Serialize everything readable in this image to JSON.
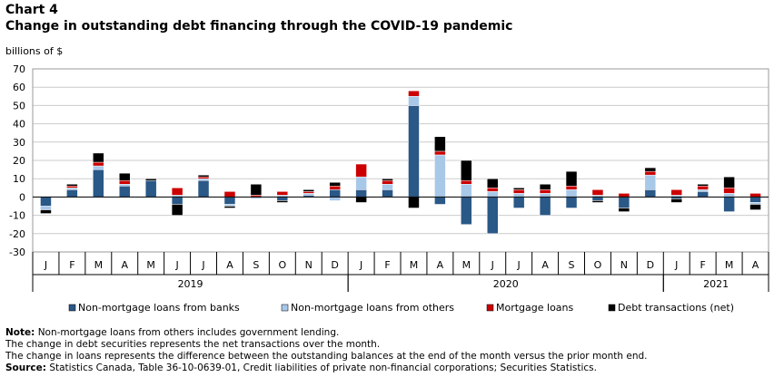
{
  "header": {
    "chart_label": "Chart 4",
    "title": "Change in outstanding debt financing through the COVID-19 pandemic"
  },
  "colors": {
    "banks": "#2a5887",
    "others": "#a8c8e8",
    "mortgage": "#cc0000",
    "debt": "#000000",
    "grid": "#cccccc",
    "frame": "#999999"
  },
  "chart_data": {
    "type": "bar",
    "stacked": true,
    "ylabel": "billions of $",
    "ylim": [
      -30,
      70
    ],
    "yticks": [
      -30,
      -20,
      -10,
      0,
      10,
      20,
      30,
      40,
      50,
      60,
      70
    ],
    "grid": true,
    "categories": [
      "J",
      "F",
      "M",
      "A",
      "M",
      "J",
      "J",
      "A",
      "S",
      "O",
      "N",
      "D",
      "J",
      "F",
      "M",
      "A",
      "M",
      "J",
      "J",
      "A",
      "S",
      "O",
      "N",
      "D",
      "J",
      "F",
      "M",
      "A"
    ],
    "year_groups": [
      {
        "label": "2019",
        "start": 0,
        "count": 12
      },
      {
        "label": "2020",
        "start": 12,
        "count": 12
      },
      {
        "label": "2021",
        "start": 24,
        "count": 4
      }
    ],
    "legend_position": "bottom",
    "series": [
      {
        "name": "Non-mortgage loans from banks",
        "color_key": "banks",
        "values": [
          -5,
          4,
          15,
          6,
          9,
          -4,
          9,
          -4,
          0,
          -2,
          1,
          4,
          4,
          4,
          50,
          -4,
          -15,
          -20,
          -6,
          -10,
          -6,
          -2,
          -6,
          4,
          -1,
          3,
          -8,
          -3
        ]
      },
      {
        "name": "Non-mortgage loans from others",
        "color_key": "others",
        "values": [
          -2,
          1,
          2,
          1,
          0,
          1,
          1,
          -1,
          -1,
          1,
          1,
          -2,
          7,
          3,
          5,
          23,
          7,
          3,
          2,
          2,
          4,
          1,
          0,
          8,
          1,
          1,
          2,
          -1
        ]
      },
      {
        "name": "Mortgage loans",
        "color_key": "mortgage",
        "values": [
          0,
          1,
          2,
          2,
          0,
          4,
          1,
          3,
          1,
          2,
          1,
          2,
          7,
          2,
          3,
          2,
          2,
          2,
          2,
          2,
          2,
          3,
          2,
          2,
          3,
          2,
          3,
          2
        ]
      },
      {
        "name": "Debt transactions (net)",
        "color_key": "debt",
        "values": [
          -2,
          1,
          5,
          4,
          1,
          -6,
          1,
          -1,
          6,
          -1,
          1,
          2,
          -3,
          1,
          -6,
          8,
          11,
          5,
          1,
          3,
          8,
          -1,
          -2,
          2,
          -2,
          1,
          6,
          -3
        ]
      }
    ]
  },
  "notes": {
    "note_label": "Note:",
    "note_text": "Non-mortgage loans from others includes government lending.",
    "line2": "The change in debt securities represents the net transactions over the month.",
    "line3": "The change in loans represents the difference between the outstanding balances at the end of the month versus the prior month end.",
    "source_label": "Source:",
    "source_text": "Statistics Canada, Table 36-10-0639-01, Credit liabilities of private non-financial corporations; Securities Statistics."
  }
}
